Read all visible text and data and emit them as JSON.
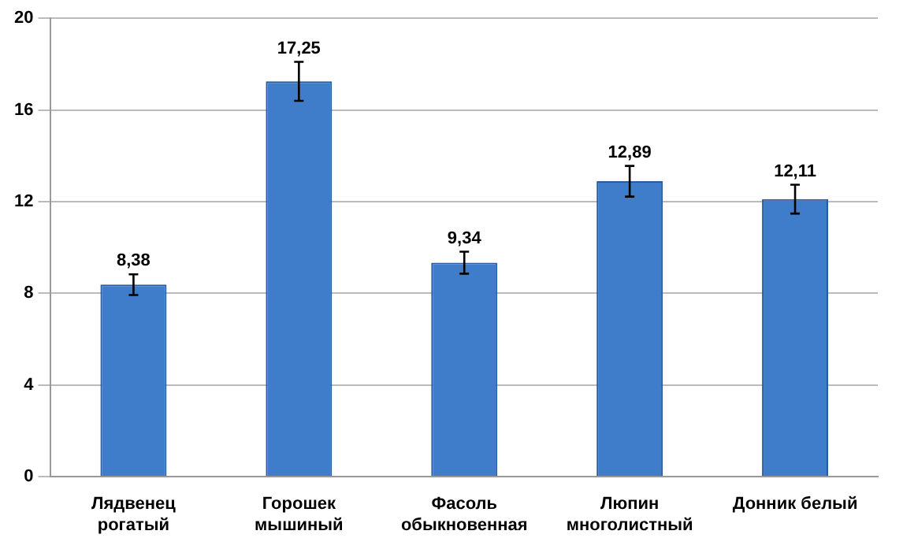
{
  "chart_data": {
    "type": "bar",
    "categories": [
      "Лядвенец рогатый",
      "Горошек мышиный",
      "Фасоль обыкновенная",
      "Люпин многолистный",
      "Донник белый"
    ],
    "values": [
      8.38,
      17.25,
      9.34,
      12.89,
      12.11
    ],
    "errors": [
      0.45,
      0.85,
      0.48,
      0.67,
      0.63
    ],
    "value_labels": [
      "8,38",
      "17,25",
      "9,34",
      "12,89",
      "12,11"
    ],
    "color": "#3f7dcb",
    "ylim": [
      0,
      20
    ],
    "yticks": [
      0,
      4,
      8,
      12,
      16,
      20
    ],
    "grid": "y",
    "legend": false
  }
}
